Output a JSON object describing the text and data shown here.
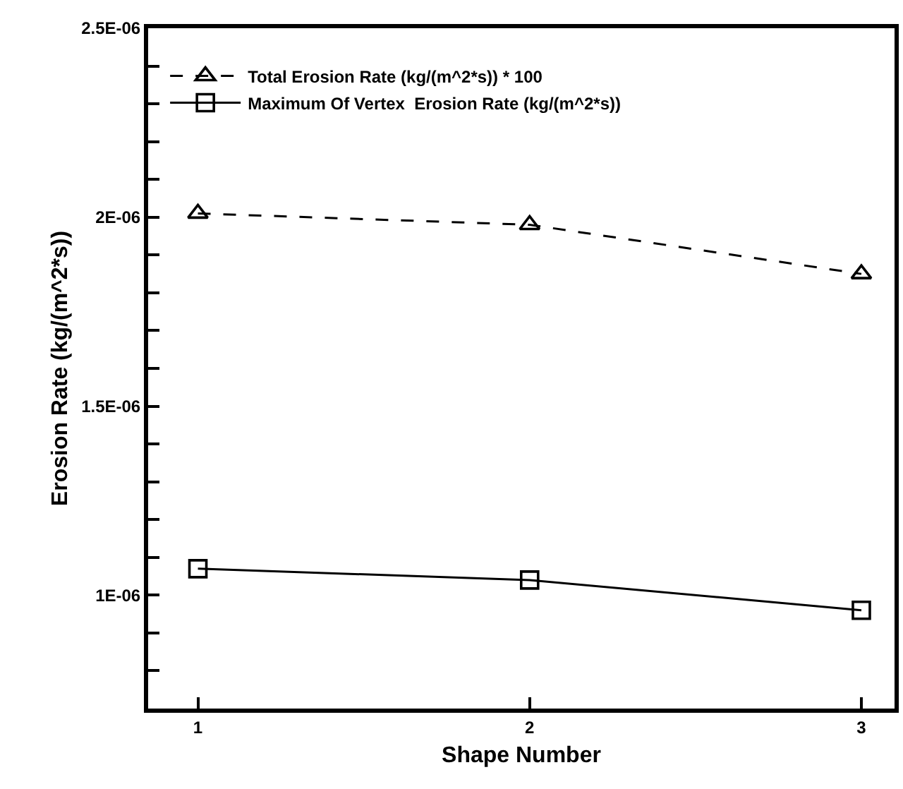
{
  "chart_data": {
    "type": "line",
    "xlabel": "Shape Number",
    "ylabel": "Erosion Rate (kg/(m^2*s))",
    "x": [
      1,
      2,
      3
    ],
    "series": [
      {
        "name": "Total Erosion Rate (kg/(m^2*s)) * 100",
        "color": "#000000",
        "values": [
          2.01e-06,
          1.98e-06,
          1.85e-06
        ],
        "marker": "triangle",
        "line_style": "dashed"
      },
      {
        "name": "Maximum Of Vertex  Erosion Rate (kg/(m^2*s))",
        "color": "#000000",
        "values": [
          1.07e-06,
          1.04e-06,
          9.6e-07
        ],
        "marker": "square",
        "line_style": "solid"
      }
    ],
    "xlim": [
      0.85,
      3.1
    ],
    "xticks": [
      1,
      2,
      3
    ],
    "ylim": [
      7e-07,
      2.5e-06
    ],
    "yticks": [
      {
        "value": 8e-07,
        "label": null
      },
      {
        "value": 9e-07,
        "label": null
      },
      {
        "value": 1e-06,
        "label": "1E-06"
      },
      {
        "value": 1.1e-06,
        "label": null
      },
      {
        "value": 1.2e-06,
        "label": null
      },
      {
        "value": 1.3e-06,
        "label": null
      },
      {
        "value": 1.4e-06,
        "label": null
      },
      {
        "value": 1.5e-06,
        "label": "1.5E-06"
      },
      {
        "value": 1.6e-06,
        "label": null
      },
      {
        "value": 1.7e-06,
        "label": null
      },
      {
        "value": 1.8e-06,
        "label": null
      },
      {
        "value": 1.9e-06,
        "label": null
      },
      {
        "value": 2e-06,
        "label": "2E-06"
      },
      {
        "value": 2.1e-06,
        "label": null
      },
      {
        "value": 2.2e-06,
        "label": null
      },
      {
        "value": 2.3e-06,
        "label": null
      },
      {
        "value": 2.4e-06,
        "label": null
      },
      {
        "value": 2.5e-06,
        "label": "2.5E-06"
      }
    ],
    "grid": false,
    "legend": "top left"
  }
}
